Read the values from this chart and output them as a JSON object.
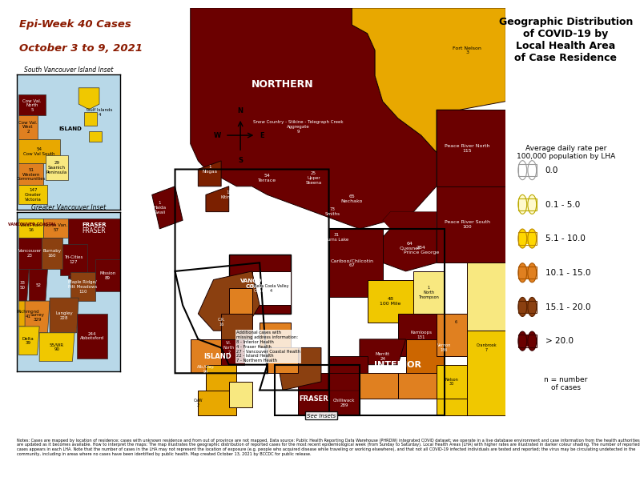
{
  "title": "Geographic Distribution\nof COVID-19 by\nLocal Health Area\nof Case Residence",
  "subtitle": "Average daily rate per\n100,000 population by LHA",
  "epi_week_title": "Epi-Week 40 Cases",
  "epi_week_dates": "October 3 to 9, 2021",
  "legend_labels": [
    "0.0",
    "0.1 - 5.0",
    "5.1 - 10.0",
    "10.1 - 15.0",
    "15.1 - 20.0",
    "> 20.0"
  ],
  "legend_colors": [
    "#FFFFFF",
    "#FFFACD",
    "#FFD700",
    "#E08020",
    "#8B4010",
    "#6B0000"
  ],
  "legend_edge_colors": [
    "#999999",
    "#BBAA00",
    "#BB8800",
    "#AA5500",
    "#5B2200",
    "#3B0000"
  ],
  "n_note": "n = number\nof cases",
  "bg_color": "#FFFFFF",
  "map_water": "#B8D8E8",
  "c_dark": "#6B0000",
  "c_darkbrown": "#7B2000",
  "c_brown": "#8B4010",
  "c_orange": "#CC6600",
  "c_light_orange": "#E08020",
  "c_gold": "#E8A800",
  "c_yellow": "#F0C800",
  "c_pale_yellow": "#F8E880",
  "c_pale": "#FFFACD",
  "c_white": "#FFFFFF",
  "notes_text": "Notes: Cases are mapped by location of residence; cases with unknown residence and from out of province are not mapped. Data source: Public Health Reporting Data Warehouse (PHRDW) integrated COVID dataset; we operate in a live database environment and case information from the health authorities are updated as it becomes available. How to interpret the maps: The map illustrates the geographic distribution of reported cases for the most recent epidemiological week (from Sunday to Saturday). Local Health Areas (LHA) with higher rates are illustrated in darker colour shading. The number of reported cases appears in each LHA. Note that the number of cases in the LHA may not represent the location of exposure (e.g. people who acquired disease while traveling or working elsewhere), and that not all COVID-19 infected individuals are tested and reported; the virus may be circulating undetected in the community, including in areas where no cases have been identified by public health. Map created October 13, 2021 by BCCDC for public release.",
  "additional_cases_text": "Additional cases with\nmissing address information:\n8 - Interior Health\n4 - Fraser Health\n27 - Vancouver Coastal Health\n22 - Island Health\n7 - Northern Health",
  "south_vi_title": "South Vancouver Island Inset",
  "gv_title": "Greater Vancouver Inset"
}
